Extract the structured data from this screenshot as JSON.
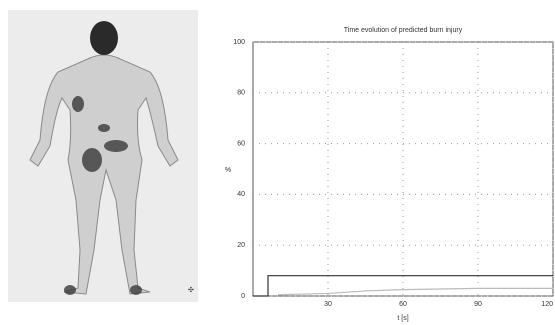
{
  "chart_data": {
    "type": "line",
    "title": "Time evolution of predicted burn injury",
    "x_label": "t [s]",
    "y_label": "%",
    "xlim": [
      0,
      120
    ],
    "xticks": [
      30,
      60,
      90,
      120
    ],
    "ylim": [
      0,
      100
    ],
    "yticks": [
      0,
      20,
      40,
      60,
      80,
      100
    ],
    "grid": true,
    "series": [
      {
        "color": "#333333",
        "x": [
          0,
          6,
          6,
          120
        ],
        "values": [
          0,
          0,
          8,
          8
        ]
      },
      {
        "color": "#bbbbbb",
        "x": [
          10,
          30,
          45,
          60,
          90,
          120
        ],
        "values": [
          0.5,
          1,
          2,
          2.5,
          3,
          3
        ]
      }
    ]
  }
}
